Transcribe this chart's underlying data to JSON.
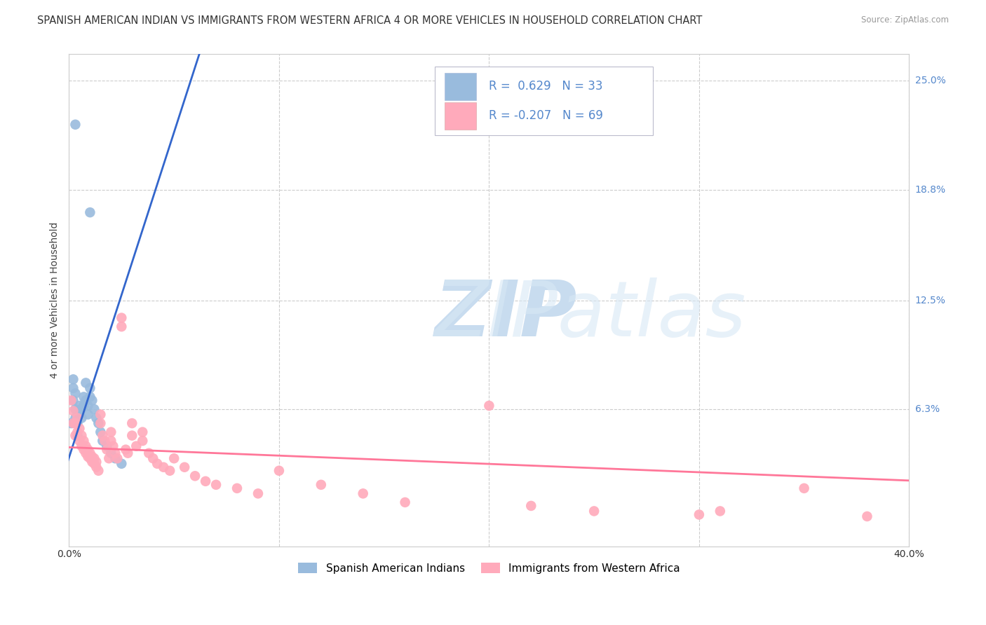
{
  "title": "SPANISH AMERICAN INDIAN VS IMMIGRANTS FROM WESTERN AFRICA 4 OR MORE VEHICLES IN HOUSEHOLD CORRELATION CHART",
  "source": "Source: ZipAtlas.com",
  "ylabel": "4 or more Vehicles in Household",
  "xlim": [
    0.0,
    0.4
  ],
  "ylim": [
    -0.015,
    0.265
  ],
  "ytick_positions": [
    0.063,
    0.125,
    0.188,
    0.25
  ],
  "ytick_labels": [
    "6.3%",
    "12.5%",
    "18.8%",
    "25.0%"
  ],
  "blue_R": 0.629,
  "blue_N": 33,
  "pink_R": -0.207,
  "pink_N": 69,
  "blue_legend": "Spanish American Indians",
  "pink_legend": "Immigrants from Western Africa",
  "blue_color": "#99BBDD",
  "pink_color": "#FFAABB",
  "blue_line_color": "#3366CC",
  "pink_line_color": "#FF7799",
  "background_color": "#FFFFFF",
  "blue_x": [
    0.001,
    0.002,
    0.002,
    0.002,
    0.003,
    0.003,
    0.003,
    0.004,
    0.004,
    0.005,
    0.005,
    0.006,
    0.006,
    0.007,
    0.007,
    0.008,
    0.008,
    0.009,
    0.009,
    0.01,
    0.01,
    0.011,
    0.012,
    0.013,
    0.014,
    0.015,
    0.016,
    0.018,
    0.02,
    0.022,
    0.025,
    0.003,
    0.01
  ],
  "blue_y": [
    0.055,
    0.068,
    0.075,
    0.08,
    0.058,
    0.063,
    0.072,
    0.048,
    0.055,
    0.06,
    0.065,
    0.058,
    0.063,
    0.065,
    0.07,
    0.068,
    0.078,
    0.06,
    0.065,
    0.07,
    0.075,
    0.068,
    0.063,
    0.058,
    0.055,
    0.05,
    0.045,
    0.042,
    0.038,
    0.035,
    0.032,
    0.225,
    0.175
  ],
  "pink_x": [
    0.001,
    0.002,
    0.002,
    0.003,
    0.003,
    0.004,
    0.004,
    0.005,
    0.005,
    0.006,
    0.006,
    0.007,
    0.007,
    0.008,
    0.008,
    0.009,
    0.009,
    0.01,
    0.01,
    0.011,
    0.011,
    0.012,
    0.012,
    0.013,
    0.013,
    0.014,
    0.015,
    0.015,
    0.016,
    0.017,
    0.018,
    0.019,
    0.02,
    0.02,
    0.021,
    0.022,
    0.023,
    0.025,
    0.025,
    0.027,
    0.028,
    0.03,
    0.03,
    0.032,
    0.035,
    0.035,
    0.038,
    0.04,
    0.042,
    0.045,
    0.048,
    0.05,
    0.055,
    0.06,
    0.065,
    0.07,
    0.08,
    0.09,
    0.1,
    0.12,
    0.14,
    0.16,
    0.2,
    0.22,
    0.25,
    0.3,
    0.35,
    0.31,
    0.38
  ],
  "pink_y": [
    0.068,
    0.055,
    0.062,
    0.048,
    0.055,
    0.05,
    0.058,
    0.045,
    0.052,
    0.042,
    0.048,
    0.04,
    0.045,
    0.038,
    0.042,
    0.036,
    0.04,
    0.035,
    0.038,
    0.033,
    0.036,
    0.032,
    0.035,
    0.03,
    0.033,
    0.028,
    0.06,
    0.055,
    0.048,
    0.045,
    0.04,
    0.035,
    0.05,
    0.045,
    0.042,
    0.038,
    0.035,
    0.115,
    0.11,
    0.04,
    0.038,
    0.055,
    0.048,
    0.042,
    0.05,
    0.045,
    0.038,
    0.035,
    0.032,
    0.03,
    0.028,
    0.035,
    0.03,
    0.025,
    0.022,
    0.02,
    0.018,
    0.015,
    0.028,
    0.02,
    0.015,
    0.01,
    0.065,
    0.008,
    0.005,
    0.003,
    0.018,
    0.005,
    0.002
  ],
  "title_fontsize": 10.5,
  "axis_label_fontsize": 10,
  "tick_fontsize": 10
}
